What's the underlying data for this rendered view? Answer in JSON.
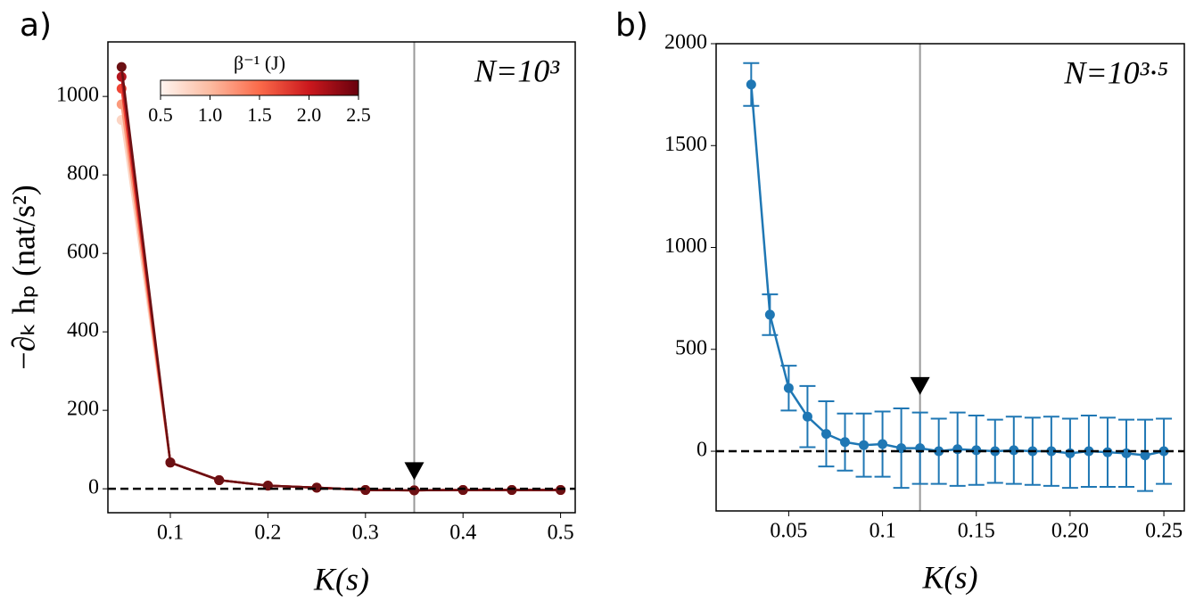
{
  "chart_data": [
    {
      "type": "line",
      "panel_label": "a)",
      "annotation": "N=10³",
      "xlabel": "K(s)",
      "ylabel": "−∂ₖ hₚ (nat/s²)",
      "x": [
        0.05,
        0.1,
        0.15,
        0.2,
        0.25,
        0.3,
        0.35,
        0.4,
        0.45,
        0.5
      ],
      "series": [
        {
          "color": "#fcd5c4",
          "values": [
            940,
            67,
            22,
            8,
            3,
            -3,
            -4,
            -3,
            -3,
            -3
          ]
        },
        {
          "color": "#fb9a7c",
          "values": [
            980,
            67,
            22,
            8,
            3,
            -3,
            -4,
            -3,
            -3,
            -3
          ]
        },
        {
          "color": "#ef4535",
          "values": [
            1020,
            67,
            22,
            8,
            3,
            -3,
            -4,
            -3,
            -3,
            -3
          ]
        },
        {
          "color": "#b3151e",
          "values": [
            1050,
            67,
            22,
            8,
            3,
            -3,
            -4,
            -3,
            -3,
            -3
          ]
        },
        {
          "color": "#6b1013",
          "values": [
            1075,
            67,
            22,
            8,
            3,
            -3,
            -4,
            -3,
            -3,
            -3
          ]
        }
      ],
      "xlim": [
        0.036,
        0.515
      ],
      "ylim": [
        -61,
        1139
      ],
      "xticks": [
        0.1,
        0.2,
        0.3,
        0.4,
        0.5
      ],
      "yticks": [
        0,
        200,
        400,
        600,
        800,
        1000
      ],
      "hline": 0,
      "vline": 0.35,
      "arrow": {
        "x": 0.35,
        "y": 45
      },
      "colorbar": {
        "label": "β⁻¹ (J)",
        "range": [
          0.5,
          2.5
        ],
        "ticks": [
          0.5,
          1.0,
          1.5,
          2.0,
          2.5
        ],
        "tick_labels": [
          "0.5",
          "1.0",
          "1.5",
          "2.0",
          "2.5"
        ],
        "colors": [
          "#fff5f0",
          "#fcbba1",
          "#fb6a4a",
          "#cb181d",
          "#67000d"
        ]
      }
    },
    {
      "type": "line",
      "panel_label": "b)",
      "annotation": "N=10³·⁵",
      "xlabel": "K(s)",
      "x": [
        0.03,
        0.04,
        0.05,
        0.06,
        0.07,
        0.08,
        0.09,
        0.1,
        0.11,
        0.12,
        0.13,
        0.14,
        0.15,
        0.16,
        0.17,
        0.18,
        0.19,
        0.2,
        0.21,
        0.22,
        0.23,
        0.24,
        0.25
      ],
      "series": [
        {
          "color": "#1f77b4",
          "values": [
            1800,
            670,
            310,
            170,
            85,
            45,
            30,
            35,
            15,
            15,
            0,
            10,
            5,
            0,
            5,
            0,
            0,
            -10,
            0,
            -5,
            -10,
            -20,
            0
          ],
          "errors": [
            105,
            100,
            110,
            150,
            160,
            140,
            155,
            160,
            195,
            175,
            160,
            180,
            170,
            155,
            165,
            165,
            170,
            170,
            175,
            170,
            165,
            175,
            160
          ]
        }
      ],
      "xlim": [
        0.0113,
        0.2609
      ],
      "ylim": [
        -293,
        2000
      ],
      "xticks": [
        0.05,
        0.1,
        0.15,
        {
          "value": 0.2,
          "label": "0.20"
        },
        0.25
      ],
      "yticks": [
        0,
        500,
        1000,
        1500,
        2000
      ],
      "hline": 0,
      "vline": 0.12,
      "arrow": {
        "x": 0.12,
        "y": 320
      }
    }
  ]
}
